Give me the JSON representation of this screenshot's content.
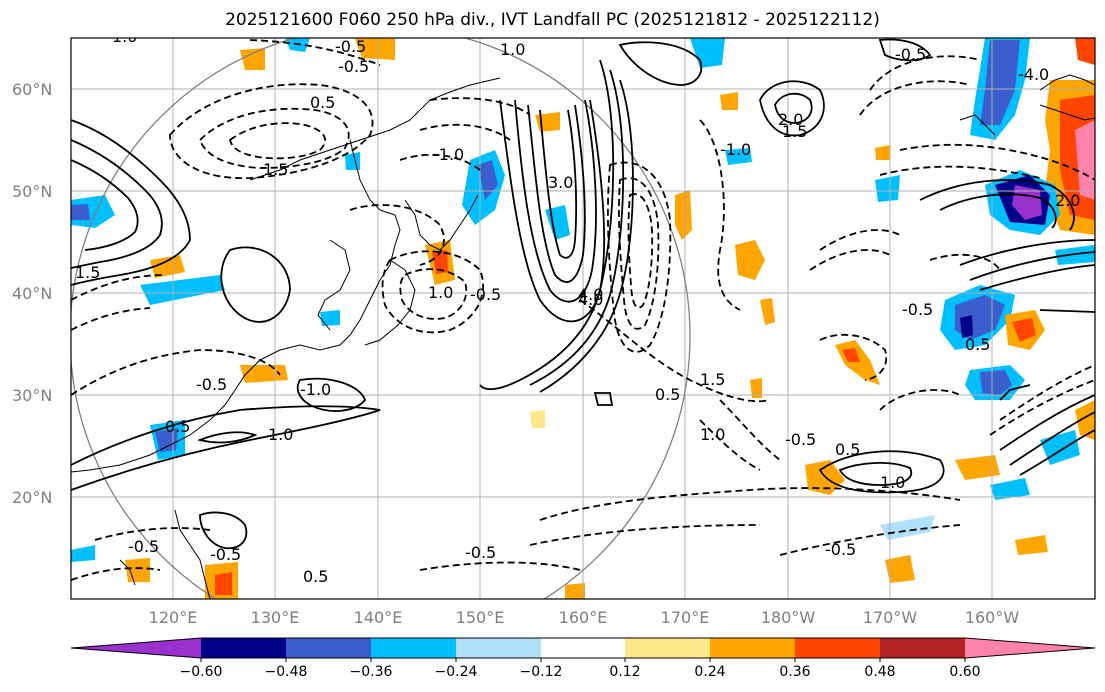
{
  "title": "2025121600 F060 250 hPa div., IVT Landfall PC (2025121812 - 2025122112)",
  "lat_labels": [
    "60°N",
    "50°N",
    "40°N",
    "30°N",
    "20°N"
  ],
  "lon_labels": [
    "120°E",
    "130°E",
    "140°E",
    "150°E",
    "160°E",
    "170°E",
    "180°W",
    "170°W",
    "160°W"
  ],
  "colorbar": {
    "tick_labels": [
      "−0.60",
      "−0.48",
      "−0.36",
      "−0.24",
      "−0.12",
      "0.12",
      "0.24",
      "0.36",
      "0.48",
      "0.60"
    ],
    "colors": [
      "#9932cc",
      "#00008b",
      "#3a5fcd",
      "#00bfff",
      "#b0e0fa",
      "#ffffff",
      "#ffe88a",
      "#ffa500",
      "#ff4500",
      "#b22222",
      "#ff82ab"
    ]
  },
  "contour_labels": [
    "1.0",
    "-0.5",
    "0.5",
    "1.0",
    "-0.5",
    "1.5",
    "-1.0",
    "2.0",
    "1.5",
    "3.0",
    "-0.5",
    "4.0",
    "-4.0",
    "1.5",
    "-0.5",
    "1.0",
    "-1.0",
    "-0.5",
    "-0.5",
    "1.0",
    "0.5",
    "-1.0",
    "0.5",
    "-0.5",
    "-0.5",
    "1.0",
    "0.5",
    "-0.5",
    "1.0",
    "0.5",
    "2.0",
    "-0.5",
    "0.5",
    "4.0",
    "1.5",
    "-0.5"
  ],
  "map_features": {
    "projection": "PlateCarree centered 180",
    "extent": {
      "lon_min": 110,
      "lon_max": 210,
      "lat_min": 10,
      "lat_max": 65
    },
    "grid": true
  }
}
